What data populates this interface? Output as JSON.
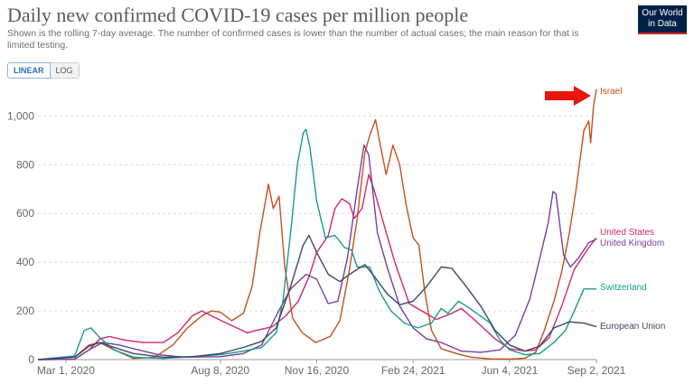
{
  "header": {
    "title": "Daily new confirmed COVID-19 cases per million people",
    "subtitle": "Shown is the rolling 7-day average. The number of confirmed cases is lower than the number of actual cases; the main reason for that is limited testing.",
    "logo_line1": "Our World",
    "logo_line2": "in Data"
  },
  "controls": {
    "linear_label": "LINEAR",
    "log_label": "LOG",
    "active": "LINEAR"
  },
  "colors": {
    "arrow": "#e8160c",
    "grid": "#dddddd",
    "axis_text": "#666666"
  },
  "chart_data": {
    "type": "line",
    "title": "Daily new confirmed COVID-19 cases per million people",
    "xlabel": "",
    "ylabel": "",
    "x_ticks": [
      "Mar 1, 2020",
      "Aug 8, 2020",
      "Nov 16, 2020",
      "Feb 24, 2021",
      "Jun 4, 2021",
      "Sep 2, 2021"
    ],
    "y_ticks": [
      0,
      200,
      400,
      600,
      800,
      "1,000"
    ],
    "xlim": [
      "2020-02-01",
      "2021-09-02"
    ],
    "ylim": [
      0,
      1120
    ],
    "grid": "horizontal dashed",
    "legend": "end-of-line labels",
    "series": [
      {
        "name": "Israel",
        "color": "#c4501b",
        "points": [
          [
            "2020-02-01",
            0
          ],
          [
            "2020-03-10",
            10
          ],
          [
            "2020-03-25",
            60
          ],
          [
            "2020-04-05",
            70
          ],
          [
            "2020-04-20",
            40
          ],
          [
            "2020-05-10",
            5
          ],
          [
            "2020-06-01",
            10
          ],
          [
            "2020-06-20",
            60
          ],
          [
            "2020-07-05",
            130
          ],
          [
            "2020-07-20",
            180
          ],
          [
            "2020-07-30",
            200
          ],
          [
            "2020-08-08",
            195
          ],
          [
            "2020-08-20",
            160
          ],
          [
            "2020-09-01",
            190
          ],
          [
            "2020-09-10",
            300
          ],
          [
            "2020-09-18",
            520
          ],
          [
            "2020-09-27",
            720
          ],
          [
            "2020-10-02",
            620
          ],
          [
            "2020-10-08",
            670
          ],
          [
            "2020-10-14",
            380
          ],
          [
            "2020-10-22",
            170
          ],
          [
            "2020-11-01",
            110
          ],
          [
            "2020-11-15",
            70
          ],
          [
            "2020-11-30",
            95
          ],
          [
            "2020-12-10",
            160
          ],
          [
            "2020-12-20",
            370
          ],
          [
            "2020-12-28",
            580
          ],
          [
            "2021-01-05",
            850
          ],
          [
            "2021-01-10",
            920
          ],
          [
            "2021-01-16",
            985
          ],
          [
            "2021-01-20",
            900
          ],
          [
            "2021-01-27",
            760
          ],
          [
            "2021-02-03",
            880
          ],
          [
            "2021-02-10",
            800
          ],
          [
            "2021-02-17",
            630
          ],
          [
            "2021-02-24",
            500
          ],
          [
            "2021-03-02",
            470
          ],
          [
            "2021-03-08",
            280
          ],
          [
            "2021-03-15",
            120
          ],
          [
            "2021-03-25",
            45
          ],
          [
            "2021-04-10",
            25
          ],
          [
            "2021-04-25",
            10
          ],
          [
            "2021-05-15",
            3
          ],
          [
            "2021-06-04",
            2
          ],
          [
            "2021-06-20",
            6
          ],
          [
            "2021-07-01",
            30
          ],
          [
            "2021-07-10",
            120
          ],
          [
            "2021-07-20",
            240
          ],
          [
            "2021-07-28",
            360
          ],
          [
            "2021-08-05",
            520
          ],
          [
            "2021-08-12",
            700
          ],
          [
            "2021-08-20",
            940
          ],
          [
            "2021-08-25",
            980
          ],
          [
            "2021-08-27",
            890
          ],
          [
            "2021-08-30",
            1040
          ],
          [
            "2021-09-02",
            1110
          ]
        ]
      },
      {
        "name": "United States",
        "color": "#d0266f",
        "points": [
          [
            "2020-02-01",
            0
          ],
          [
            "2020-03-10",
            1
          ],
          [
            "2020-03-25",
            40
          ],
          [
            "2020-04-05",
            85
          ],
          [
            "2020-04-15",
            95
          ],
          [
            "2020-05-01",
            80
          ],
          [
            "2020-05-20",
            70
          ],
          [
            "2020-06-10",
            70
          ],
          [
            "2020-06-25",
            110
          ],
          [
            "2020-07-10",
            180
          ],
          [
            "2020-07-20",
            200
          ],
          [
            "2020-08-01",
            175
          ],
          [
            "2020-08-20",
            140
          ],
          [
            "2020-09-05",
            110
          ],
          [
            "2020-09-15",
            120
          ],
          [
            "2020-10-01",
            135
          ],
          [
            "2020-10-15",
            180
          ],
          [
            "2020-10-28",
            240
          ],
          [
            "2020-11-08",
            340
          ],
          [
            "2020-11-16",
            440
          ],
          [
            "2020-11-28",
            510
          ],
          [
            "2020-12-05",
            620
          ],
          [
            "2020-12-12",
            660
          ],
          [
            "2020-12-20",
            640
          ],
          [
            "2020-12-25",
            580
          ],
          [
            "2021-01-02",
            620
          ],
          [
            "2021-01-09",
            760
          ],
          [
            "2021-01-15",
            690
          ],
          [
            "2021-01-25",
            550
          ],
          [
            "2021-02-05",
            400
          ],
          [
            "2021-02-20",
            230
          ],
          [
            "2021-03-05",
            200
          ],
          [
            "2021-03-20",
            165
          ],
          [
            "2021-04-05",
            190
          ],
          [
            "2021-04-15",
            210
          ],
          [
            "2021-05-01",
            155
          ],
          [
            "2021-05-20",
            85
          ],
          [
            "2021-06-04",
            45
          ],
          [
            "2021-06-20",
            35
          ],
          [
            "2021-07-01",
            40
          ],
          [
            "2021-07-15",
            90
          ],
          [
            "2021-07-28",
            220
          ],
          [
            "2021-08-10",
            370
          ],
          [
            "2021-08-25",
            460
          ],
          [
            "2021-09-02",
            500
          ]
        ]
      },
      {
        "name": "United Kingdom",
        "color": "#7a3e9e",
        "points": [
          [
            "2020-02-01",
            0
          ],
          [
            "2020-03-10",
            2
          ],
          [
            "2020-03-25",
            40
          ],
          [
            "2020-04-08",
            70
          ],
          [
            "2020-04-25",
            60
          ],
          [
            "2020-05-15",
            40
          ],
          [
            "2020-06-05",
            20
          ],
          [
            "2020-07-01",
            10
          ],
          [
            "2020-08-08",
            12
          ],
          [
            "2020-09-01",
            25
          ],
          [
            "2020-09-20",
            60
          ],
          [
            "2020-10-05",
            180
          ],
          [
            "2020-10-20",
            290
          ],
          [
            "2020-11-05",
            350
          ],
          [
            "2020-11-16",
            330
          ],
          [
            "2020-11-28",
            230
          ],
          [
            "2020-12-08",
            240
          ],
          [
            "2020-12-18",
            420
          ],
          [
            "2020-12-28",
            700
          ],
          [
            "2021-01-04",
            880
          ],
          [
            "2021-01-09",
            840
          ],
          [
            "2021-01-18",
            520
          ],
          [
            "2021-01-28",
            380
          ],
          [
            "2021-02-10",
            220
          ],
          [
            "2021-02-24",
            130
          ],
          [
            "2021-03-10",
            85
          ],
          [
            "2021-03-25",
            70
          ],
          [
            "2021-04-15",
            35
          ],
          [
            "2021-05-05",
            30
          ],
          [
            "2021-05-25",
            40
          ],
          [
            "2021-06-10",
            100
          ],
          [
            "2021-06-25",
            250
          ],
          [
            "2021-07-05",
            410
          ],
          [
            "2021-07-14",
            560
          ],
          [
            "2021-07-19",
            690
          ],
          [
            "2021-07-22",
            680
          ],
          [
            "2021-07-30",
            430
          ],
          [
            "2021-08-06",
            380
          ],
          [
            "2021-08-15",
            420
          ],
          [
            "2021-08-25",
            480
          ],
          [
            "2021-09-02",
            495
          ]
        ]
      },
      {
        "name": "Switzerland",
        "color": "#169c8d",
        "points": [
          [
            "2020-02-01",
            0
          ],
          [
            "2020-03-10",
            15
          ],
          [
            "2020-03-20",
            120
          ],
          [
            "2020-03-27",
            130
          ],
          [
            "2020-04-05",
            90
          ],
          [
            "2020-04-20",
            40
          ],
          [
            "2020-05-10",
            10
          ],
          [
            "2020-06-10",
            5
          ],
          [
            "2020-07-01",
            10
          ],
          [
            "2020-07-20",
            15
          ],
          [
            "2020-08-08",
            20
          ],
          [
            "2020-09-01",
            35
          ],
          [
            "2020-09-20",
            50
          ],
          [
            "2020-10-05",
            110
          ],
          [
            "2020-10-12",
            240
          ],
          [
            "2020-10-20",
            520
          ],
          [
            "2020-10-27",
            800
          ],
          [
            "2020-11-02",
            930
          ],
          [
            "2020-11-05",
            945
          ],
          [
            "2020-11-09",
            870
          ],
          [
            "2020-11-16",
            650
          ],
          [
            "2020-11-25",
            500
          ],
          [
            "2020-12-05",
            510
          ],
          [
            "2020-12-15",
            460
          ],
          [
            "2020-12-22",
            450
          ],
          [
            "2020-12-28",
            380
          ],
          [
            "2021-01-10",
            380
          ],
          [
            "2021-01-20",
            280
          ],
          [
            "2021-02-01",
            200
          ],
          [
            "2021-02-15",
            150
          ],
          [
            "2021-03-01",
            130
          ],
          [
            "2021-03-15",
            150
          ],
          [
            "2021-03-25",
            210
          ],
          [
            "2021-04-01",
            190
          ],
          [
            "2021-04-12",
            240
          ],
          [
            "2021-04-20",
            220
          ],
          [
            "2021-05-01",
            190
          ],
          [
            "2021-05-15",
            150
          ],
          [
            "2021-05-25",
            80
          ],
          [
            "2021-06-04",
            40
          ],
          [
            "2021-06-20",
            20
          ],
          [
            "2021-07-05",
            25
          ],
          [
            "2021-07-20",
            70
          ],
          [
            "2021-08-01",
            120
          ],
          [
            "2021-08-10",
            200
          ],
          [
            "2021-08-20",
            290
          ],
          [
            "2021-09-02",
            290
          ]
        ]
      },
      {
        "name": "European Union",
        "color": "#3b4866",
        "points": [
          [
            "2020-02-01",
            0
          ],
          [
            "2020-03-10",
            10
          ],
          [
            "2020-03-25",
            55
          ],
          [
            "2020-04-05",
            70
          ],
          [
            "2020-04-20",
            50
          ],
          [
            "2020-05-10",
            25
          ],
          [
            "2020-06-10",
            10
          ],
          [
            "2020-07-10",
            12
          ],
          [
            "2020-08-08",
            25
          ],
          [
            "2020-09-01",
            50
          ],
          [
            "2020-09-20",
            75
          ],
          [
            "2020-10-05",
            130
          ],
          [
            "2020-10-20",
            300
          ],
          [
            "2020-11-02",
            470
          ],
          [
            "2020-11-08",
            510
          ],
          [
            "2020-11-16",
            440
          ],
          [
            "2020-11-28",
            350
          ],
          [
            "2020-12-10",
            320
          ],
          [
            "2020-12-20",
            350
          ],
          [
            "2021-01-05",
            390
          ],
          [
            "2021-01-15",
            340
          ],
          [
            "2021-01-28",
            270
          ],
          [
            "2021-02-10",
            225
          ],
          [
            "2021-02-24",
            240
          ],
          [
            "2021-03-10",
            300
          ],
          [
            "2021-03-25",
            380
          ],
          [
            "2021-04-05",
            375
          ],
          [
            "2021-04-20",
            300
          ],
          [
            "2021-05-05",
            220
          ],
          [
            "2021-05-20",
            120
          ],
          [
            "2021-06-04",
            60
          ],
          [
            "2021-06-20",
            35
          ],
          [
            "2021-07-05",
            55
          ],
          [
            "2021-07-20",
            130
          ],
          [
            "2021-08-05",
            155
          ],
          [
            "2021-08-20",
            150
          ],
          [
            "2021-09-02",
            135
          ]
        ]
      }
    ]
  }
}
